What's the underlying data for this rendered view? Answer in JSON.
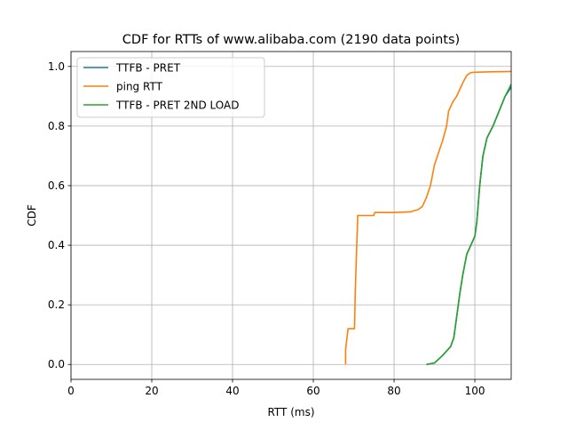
{
  "chart_data": {
    "type": "line",
    "title": "CDF for RTTs of www.alibaba.com (2190 data points)",
    "xlabel": "RTT (ms)",
    "ylabel": "CDF",
    "xlim": [
      0,
      109
    ],
    "ylim": [
      -0.05,
      1.05
    ],
    "xticks": [
      0,
      20,
      40,
      60,
      80,
      100
    ],
    "yticks": [
      0.0,
      0.2,
      0.4,
      0.6,
      0.8,
      1.0
    ],
    "xtick_labels": [
      "0",
      "20",
      "40",
      "60",
      "80",
      "100"
    ],
    "ytick_labels": [
      "0.0",
      "0.2",
      "0.4",
      "0.6",
      "0.8",
      "1.0"
    ],
    "grid": true,
    "legend_position": "top-left",
    "series": [
      {
        "name": "TTFB - PRET",
        "color": "#1f77b4",
        "x": [
          88.0,
          90.0,
          92.0,
          94.0,
          94.8,
          95.5,
          96.3,
          97.0,
          98.0,
          99.0,
          100.0,
          100.5,
          101.2,
          102.0,
          103.0,
          104.5,
          106.0,
          107.5,
          109.0
        ],
        "y": [
          0.0,
          0.005,
          0.03,
          0.06,
          0.09,
          0.16,
          0.24,
          0.3,
          0.37,
          0.4,
          0.43,
          0.48,
          0.6,
          0.7,
          0.76,
          0.8,
          0.85,
          0.9,
          0.93
        ]
      },
      {
        "name": "ping RTT",
        "color": "#ff7f0e",
        "x": [
          68.0,
          68.0,
          68.6,
          70.2,
          70.4,
          71.0,
          75.0,
          75.2,
          80.0,
          84.0,
          86.0,
          87.0,
          88.0,
          89.0,
          90.0,
          91.0,
          92.0,
          93.0,
          93.5,
          94.5,
          95.5,
          96.5,
          97.2,
          98.0,
          98.8,
          99.5,
          101.0,
          104.0,
          109.0
        ],
        "y": [
          0.0,
          0.05,
          0.12,
          0.12,
          0.25,
          0.5,
          0.5,
          0.51,
          0.51,
          0.512,
          0.52,
          0.53,
          0.56,
          0.6,
          0.67,
          0.71,
          0.75,
          0.8,
          0.85,
          0.88,
          0.9,
          0.93,
          0.95,
          0.97,
          0.978,
          0.98,
          0.981,
          0.982,
          0.983
        ]
      },
      {
        "name": "TTFB - PRET 2ND LOAD",
        "color": "#2ca02c",
        "x": [
          88.0,
          90.0,
          92.0,
          94.0,
          94.8,
          95.5,
          96.3,
          97.0,
          98.0,
          99.0,
          100.0,
          100.5,
          101.2,
          102.0,
          103.0,
          104.5,
          106.0,
          107.5,
          109.0
        ],
        "y": [
          0.0,
          0.005,
          0.03,
          0.06,
          0.09,
          0.16,
          0.24,
          0.3,
          0.37,
          0.4,
          0.43,
          0.48,
          0.6,
          0.7,
          0.76,
          0.8,
          0.85,
          0.9,
          0.94
        ]
      }
    ]
  }
}
